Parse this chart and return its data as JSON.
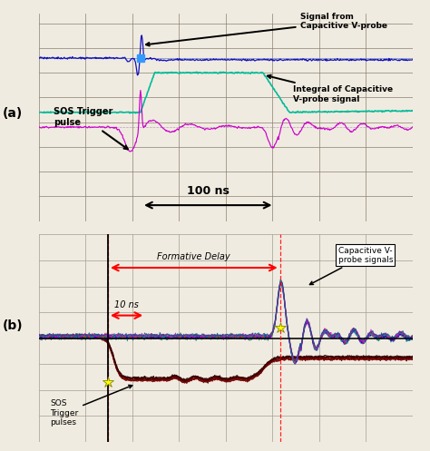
{
  "fig_width": 4.74,
  "fig_height": 4.97,
  "dpi": 100,
  "outer_bg": "#f0ebe0",
  "panel_a": {
    "label": "(a)",
    "bg_color": "#c8ba90",
    "grid_color": "#8a8070",
    "signal_from_cap_label": "Signal from\nCapacitive V-probe",
    "integral_cap_label": "Integral of Capacitive\nV-probe signal",
    "sos_trigger_label": "SOS Trigger\npulse",
    "scale_label": "100 ns",
    "blue_color": "#1010bb",
    "green_color": "#00bb99",
    "purple_color": "#cc00cc"
  },
  "panel_b": {
    "label": "(b)",
    "bg_color": "#dedad0",
    "grid_color": "#a0a090",
    "formative_delay_label": "Formative Delay",
    "ten_ns_label": "10 ns",
    "cap_probe_label": "Capacitive V-\nprobe signals",
    "sos_trigger_label": "SOS\nTrigger\npulses",
    "trigger_colors": [
      "#5a0000",
      "#8B0000",
      "#700000",
      "#600000",
      "#400000",
      "#300000"
    ],
    "cap_colors": [
      "#007070",
      "#009090",
      "#cc00cc",
      "#9900aa",
      "#0000bb",
      "#00aaaa",
      "#aa5500",
      "#dd00dd",
      "#005588"
    ]
  }
}
